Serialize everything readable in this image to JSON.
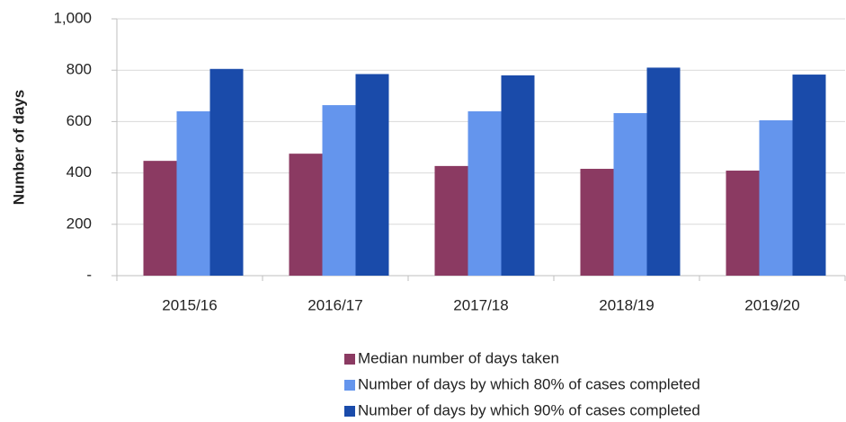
{
  "chart_data": {
    "type": "bar",
    "ylabel": "Number of days",
    "categories": [
      "2015/16",
      "2016/17",
      "2017/18",
      "2018/19",
      "2019/20"
    ],
    "series": [
      {
        "name": "Median number of days taken",
        "color": "#8b3a62",
        "values": [
          447,
          475,
          427,
          416,
          409
        ]
      },
      {
        "name": "Number of days by which 80% of cases completed",
        "color": "#6495ed",
        "values": [
          640,
          664,
          640,
          633,
          605
        ]
      },
      {
        "name": "Number of days by which 90% of cases completed",
        "color": "#1a4baa",
        "values": [
          805,
          785,
          780,
          810,
          783
        ]
      }
    ],
    "ylim": [
      0,
      1000
    ],
    "yticks": [
      {
        "value": 0,
        "label": "-"
      },
      200,
      400,
      600,
      800,
      {
        "value": 1000,
        "label": "1,000"
      }
    ],
    "grid": true,
    "legend": "bottom"
  }
}
